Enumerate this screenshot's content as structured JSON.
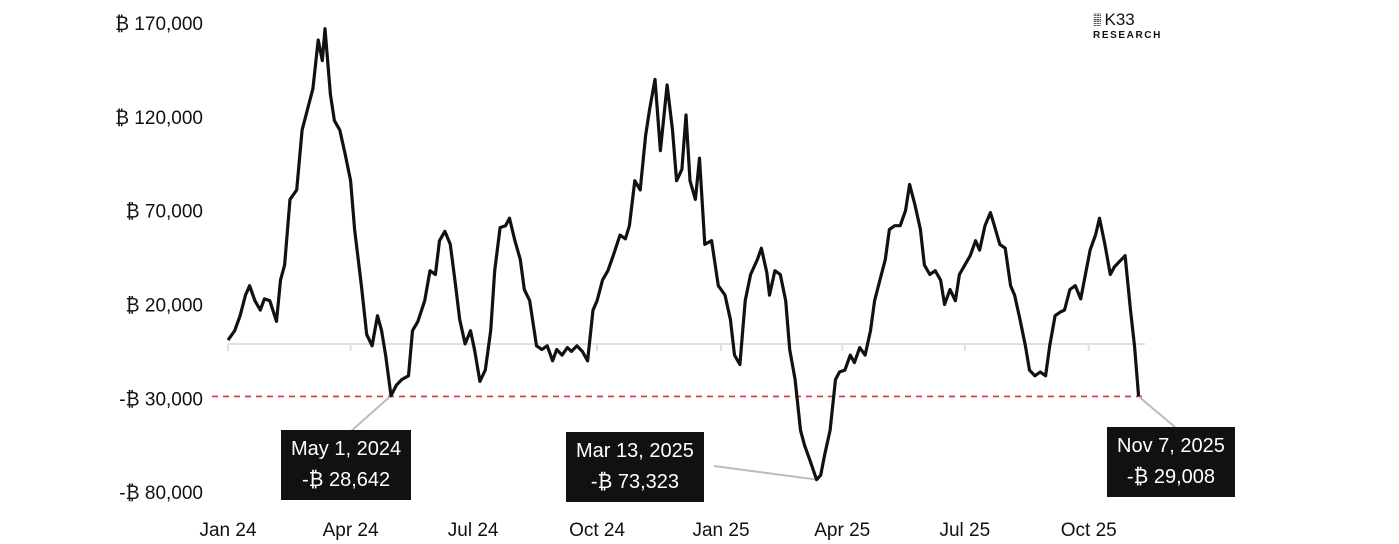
{
  "chart_data": {
    "type": "line",
    "title": "",
    "xlabel": "",
    "ylabel": "",
    "x_origin": "2024-01-01",
    "x_unit": "days since origin",
    "ylim": [
      -80000,
      170000
    ],
    "yticks": [
      {
        "value": 170000,
        "label": "₿ 170,000"
      },
      {
        "value": 120000,
        "label": "₿ 120,000"
      },
      {
        "value": 70000,
        "label": "₿ 70,000"
      },
      {
        "value": 20000,
        "label": "₿ 20,000"
      },
      {
        "value": -30000,
        "label": "-₿ 30,000"
      },
      {
        "value": -80000,
        "label": "-₿ 80,000"
      }
    ],
    "xticks": [
      {
        "day": 0,
        "label": "Jan 24"
      },
      {
        "day": 91,
        "label": "Apr 24"
      },
      {
        "day": 182,
        "label": "Jul 24"
      },
      {
        "day": 274,
        "label": "Oct 24"
      },
      {
        "day": 366,
        "label": "Jan 25"
      },
      {
        "day": 456,
        "label": "Apr 25"
      },
      {
        "day": 547,
        "label": "Jul 25"
      },
      {
        "day": 639,
        "label": "Oct 25"
      }
    ],
    "reference_line": {
      "value": -29008,
      "color": "#d9353b",
      "style": "dashed"
    },
    "series": [
      {
        "name": "BTC",
        "color": "#111111",
        "points": [
          [
            0,
            1000
          ],
          [
            5,
            6000
          ],
          [
            9,
            14000
          ],
          [
            13,
            25000
          ],
          [
            16,
            30000
          ],
          [
            20,
            22000
          ],
          [
            24,
            17000
          ],
          [
            27,
            23000
          ],
          [
            31,
            22000
          ],
          [
            36,
            11000
          ],
          [
            39,
            33000
          ],
          [
            42,
            41000
          ],
          [
            46,
            76000
          ],
          [
            51,
            81000
          ],
          [
            55,
            113000
          ],
          [
            59,
            124000
          ],
          [
            63,
            135000
          ],
          [
            67,
            161000
          ],
          [
            70,
            150000
          ],
          [
            72,
            167000
          ],
          [
            76,
            132000
          ],
          [
            79,
            118000
          ],
          [
            83,
            113000
          ],
          [
            87,
            100000
          ],
          [
            91,
            86000
          ],
          [
            94,
            60000
          ],
          [
            99,
            30000
          ],
          [
            103,
            4000
          ],
          [
            107,
            -2000
          ],
          [
            111,
            14000
          ],
          [
            114,
            6000
          ],
          [
            117,
            -7000
          ],
          [
            121,
            -28642
          ],
          [
            125,
            -23000
          ],
          [
            129,
            -20000
          ],
          [
            134,
            -18000
          ],
          [
            137,
            6000
          ],
          [
            141,
            11000
          ],
          [
            146,
            22000
          ],
          [
            150,
            38000
          ],
          [
            154,
            36000
          ],
          [
            157,
            54000
          ],
          [
            161,
            59000
          ],
          [
            165,
            52000
          ],
          [
            169,
            30000
          ],
          [
            172,
            12000
          ],
          [
            176,
            -1000
          ],
          [
            180,
            6000
          ],
          [
            183,
            -4000
          ],
          [
            187,
            -21000
          ],
          [
            191,
            -15000
          ],
          [
            195,
            6000
          ],
          [
            198,
            38000
          ],
          [
            202,
            61000
          ],
          [
            206,
            62000
          ],
          [
            209,
            66000
          ],
          [
            213,
            54000
          ],
          [
            217,
            44000
          ],
          [
            220,
            28000
          ],
          [
            224,
            22000
          ],
          [
            229,
            -2000
          ],
          [
            233,
            -4000
          ],
          [
            237,
            -2000
          ],
          [
            241,
            -10000
          ],
          [
            244,
            -4000
          ],
          [
            248,
            -7000
          ],
          [
            252,
            -3000
          ],
          [
            255,
            -5000
          ],
          [
            259,
            -2000
          ],
          [
            263,
            -5000
          ],
          [
            267,
            -10000
          ],
          [
            271,
            17000
          ],
          [
            274,
            22000
          ],
          [
            278,
            33000
          ],
          [
            282,
            38000
          ],
          [
            286,
            46000
          ],
          [
            291,
            57000
          ],
          [
            295,
            55000
          ],
          [
            298,
            62000
          ],
          [
            302,
            86000
          ],
          [
            306,
            81000
          ],
          [
            310,
            110000
          ],
          [
            313,
            124000
          ],
          [
            317,
            140000
          ],
          [
            321,
            102000
          ],
          [
            326,
            137000
          ],
          [
            330,
            113000
          ],
          [
            333,
            86000
          ],
          [
            337,
            92000
          ],
          [
            340,
            121000
          ],
          [
            343,
            86000
          ],
          [
            347,
            76000
          ],
          [
            350,
            98000
          ],
          [
            354,
            52000
          ],
          [
            359,
            54000
          ],
          [
            364,
            30000
          ],
          [
            369,
            25000
          ],
          [
            373,
            12000
          ],
          [
            376,
            -7000
          ],
          [
            380,
            -12000
          ],
          [
            384,
            22000
          ],
          [
            388,
            36000
          ],
          [
            393,
            44000
          ],
          [
            396,
            50000
          ],
          [
            400,
            37000
          ],
          [
            402,
            25000
          ],
          [
            406,
            38000
          ],
          [
            410,
            36000
          ],
          [
            414,
            22000
          ],
          [
            417,
            -4000
          ],
          [
            421,
            -20000
          ],
          [
            425,
            -47000
          ],
          [
            428,
            -55000
          ],
          [
            432,
            -63000
          ],
          [
            437,
            -73323
          ],
          [
            440,
            -71000
          ],
          [
            443,
            -60000
          ],
          [
            447,
            -47000
          ],
          [
            451,
            -20000
          ],
          [
            454,
            -16000
          ],
          [
            458,
            -15000
          ],
          [
            462,
            -7000
          ],
          [
            465,
            -11000
          ],
          [
            469,
            -3000
          ],
          [
            473,
            -7000
          ],
          [
            477,
            6000
          ],
          [
            480,
            22000
          ],
          [
            484,
            33000
          ],
          [
            488,
            44000
          ],
          [
            491,
            60000
          ],
          [
            495,
            62000
          ],
          [
            499,
            62000
          ],
          [
            503,
            70000
          ],
          [
            506,
            84000
          ],
          [
            510,
            73000
          ],
          [
            514,
            60000
          ],
          [
            517,
            41000
          ],
          [
            521,
            36000
          ],
          [
            525,
            38000
          ],
          [
            529,
            33000
          ],
          [
            532,
            20000
          ],
          [
            536,
            28000
          ],
          [
            540,
            22000
          ],
          [
            543,
            36000
          ],
          [
            547,
            41000
          ],
          [
            551,
            46000
          ],
          [
            555,
            54000
          ],
          [
            558,
            49000
          ],
          [
            562,
            62000
          ],
          [
            566,
            69000
          ],
          [
            569,
            62000
          ],
          [
            573,
            52000
          ],
          [
            577,
            50000
          ],
          [
            581,
            30000
          ],
          [
            584,
            25000
          ],
          [
            588,
            12000
          ],
          [
            592,
            -2000
          ],
          [
            595,
            -15000
          ],
          [
            599,
            -18000
          ],
          [
            603,
            -16000
          ],
          [
            607,
            -18000
          ],
          [
            610,
            -2000
          ],
          [
            614,
            14000
          ],
          [
            618,
            16000
          ],
          [
            621,
            17000
          ],
          [
            625,
            28000
          ],
          [
            629,
            30000
          ],
          [
            633,
            23000
          ],
          [
            636,
            34000
          ],
          [
            640,
            49000
          ],
          [
            644,
            57000
          ],
          [
            647,
            66000
          ],
          [
            651,
            52000
          ],
          [
            655,
            36000
          ],
          [
            658,
            40000
          ],
          [
            662,
            43000
          ],
          [
            666,
            46000
          ],
          [
            670,
            17000
          ],
          [
            673,
            -2000
          ],
          [
            676,
            -29008
          ]
        ]
      }
    ],
    "annotations": [
      {
        "day": 121,
        "value": -28642,
        "date": "May 1, 2024",
        "text": "-₿ 28,642"
      },
      {
        "day": 437,
        "value": -73323,
        "date": "Mar 13, 2025",
        "text": "-₿ 73,323"
      },
      {
        "day": 676,
        "value": -29008,
        "date": "Nov 7, 2025",
        "text": "-₿ 29,008"
      }
    ],
    "grid": false,
    "legend": "none"
  },
  "logo": {
    "name": "K33",
    "sub": "RESEARCH"
  }
}
